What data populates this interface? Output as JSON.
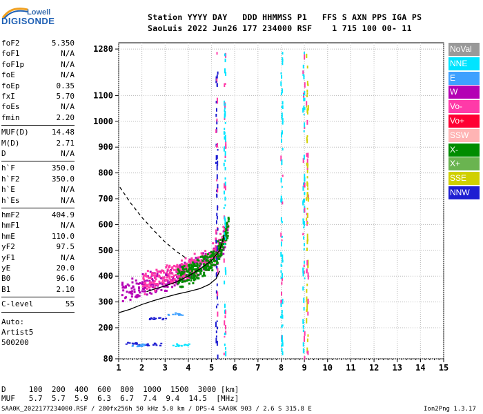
{
  "logo": {
    "line1": "Lowell",
    "line2": "DIGISONDE"
  },
  "header": {
    "line1": "Station YYYY DAY   DDD HHMMSS P1   FFS S AXN PPS IGA PS",
    "line2": "SaoLuis 2022 Jun26 177 234000 RSF    1 715 100 00- 11"
  },
  "params": [
    {
      "label": "foF2",
      "value": "5.350"
    },
    {
      "label": "foF1",
      "value": "N/A"
    },
    {
      "label": "foF1p",
      "value": "N/A"
    },
    {
      "label": "foE",
      "value": "N/A"
    },
    {
      "label": "foEp",
      "value": "0.35"
    },
    {
      "label": "fxI",
      "value": "5.70"
    },
    {
      "label": "foEs",
      "value": "N/A"
    },
    {
      "label": "fmin",
      "value": "2.20"
    },
    {
      "label": "MUF(D)",
      "value": "14.48"
    },
    {
      "label": "M(D)",
      "value": "2.71"
    },
    {
      "label": "D",
      "value": "N/A"
    },
    {
      "label": "h`F",
      "value": "350.0"
    },
    {
      "label": "h`F2",
      "value": "350.0"
    },
    {
      "label": "h`E",
      "value": "N/A"
    },
    {
      "label": "h`Es",
      "value": "N/A"
    },
    {
      "label": "hmF2",
      "value": "404.9"
    },
    {
      "label": "hmF1",
      "value": "N/A"
    },
    {
      "label": "hmE",
      "value": "110.0"
    },
    {
      "label": "yF2",
      "value": "97.5"
    },
    {
      "label": "yF1",
      "value": "N/A"
    },
    {
      "label": "yE",
      "value": "20.0"
    },
    {
      "label": "B0",
      "value": "96.6"
    },
    {
      "label": "B1",
      "value": "2.10"
    },
    {
      "label": "C-level",
      "value": "55"
    }
  ],
  "autoscale": {
    "line1": "Auto:",
    "line2": "Artist5",
    "line3": "500200"
  },
  "legend": [
    {
      "label": "NoVal",
      "color": "#999999"
    },
    {
      "label": "NNE",
      "color": "#00e4ff"
    },
    {
      "label": "E",
      "color": "#3ea0ff"
    },
    {
      "label": "W",
      "color": "#b400b4"
    },
    {
      "label": "Vo-",
      "color": "#ff3aa8"
    },
    {
      "label": "Vo+",
      "color": "#ff0033"
    },
    {
      "label": "SSW",
      "color": "#ffb4b4"
    },
    {
      "label": "X-",
      "color": "#008c00"
    },
    {
      "label": "X+",
      "color": "#6ab450"
    },
    {
      "label": "SSE",
      "color": "#d0d000"
    },
    {
      "label": "NNW",
      "color": "#1e1ed2"
    }
  ],
  "muf_table": {
    "d_line": "D     100  200  400  600  800  1000  1500  3000 [km]",
    "muf_line": "MUF   5.7  5.7  5.9  6.3  6.7  7.4  9.4  14.5  [MHz]"
  },
  "footer": {
    "left": "SAA0K_2022177234000.RSF / 280fx256h 50 kHz 5.0 km / DPS-4 SAA0K 903 / 2.6 S 315.8 E",
    "right": "Ion2Png 1.3.17"
  },
  "chart_data": {
    "type": "scatter",
    "title": "",
    "xlabel": "",
    "ylabel": "",
    "xlim": [
      1,
      15
    ],
    "ylim": [
      80,
      1280
    ],
    "x_ticks": [
      1,
      2,
      3,
      4,
      5,
      6,
      7,
      8,
      9,
      10,
      11,
      12,
      13,
      14,
      15
    ],
    "y_ticks": [
      80,
      200,
      300,
      400,
      500,
      600,
      700,
      800,
      900,
      1000,
      1100,
      1280
    ],
    "grid": true,
    "legend_position": "right",
    "series": [
      {
        "name": "",
        "kind": "line",
        "style": "solid",
        "x": [
          1.0,
          1.5,
          2.0,
          2.5,
          3.0,
          3.5,
          4.0,
          4.5,
          4.9,
          5.2,
          5.35
        ],
        "y": [
          258,
          272,
          290,
          305,
          318,
          330,
          340,
          352,
          368,
          390,
          420
        ]
      },
      {
        "name": "",
        "kind": "line",
        "style": "dashed",
        "x": [
          1.05,
          1.5,
          2.0,
          2.5,
          3.0,
          3.5,
          3.9
        ],
        "y": [
          745,
          685,
          628,
          578,
          532,
          495,
          470
        ]
      },
      {
        "name": "",
        "kind": "line",
        "style": "solid",
        "x": [
          2.2,
          2.6,
          3.0,
          3.5,
          4.0,
          4.5,
          5.0,
          5.35,
          5.55
        ],
        "y": [
          340,
          352,
          362,
          378,
          400,
          428,
          460,
          500,
          560
        ]
      }
    ],
    "echo_traces": [
      {
        "name": "",
        "kind": "band",
        "color_key": "W",
        "x": [
          1.1,
          1.5,
          2.0,
          2.5,
          3.0,
          3.5,
          4.0,
          4.5,
          5.0,
          5.3,
          5.5,
          5.7
        ],
        "y": [
          340,
          352,
          368,
          382,
          392,
          405,
          422,
          440,
          470,
          500,
          540,
          600
        ]
      },
      {
        "name": "",
        "kind": "band",
        "color_key": "Vo-",
        "x": [
          2.0,
          2.5,
          3.0,
          3.5,
          4.0,
          4.5,
          5.0,
          5.3,
          5.5,
          5.7
        ],
        "y": [
          375,
          390,
          405,
          418,
          435,
          455,
          485,
          520,
          560,
          620
        ]
      },
      {
        "name": "",
        "kind": "band",
        "color_key": "X-",
        "x": [
          3.5,
          4.0,
          4.5,
          5.0,
          5.3,
          5.5,
          5.7
        ],
        "y": [
          395,
          415,
          435,
          465,
          500,
          540,
          600
        ]
      }
    ],
    "vertical_streaks": [
      {
        "x": 5.2,
        "color_key": "NNW"
      },
      {
        "x": 5.55,
        "color_key": "NNE"
      },
      {
        "x": 8.0,
        "color_key": "NNE"
      },
      {
        "x": 8.95,
        "color_key": "NNE"
      },
      {
        "x": 9.1,
        "color_key": "SSE"
      }
    ]
  }
}
